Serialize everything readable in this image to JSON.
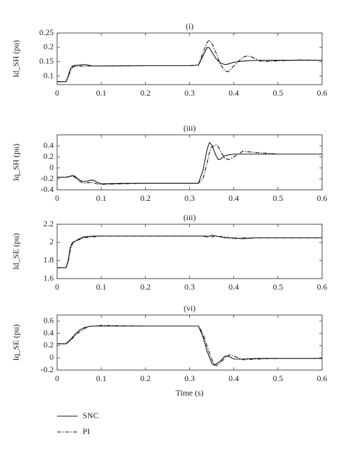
{
  "chart_data": [
    {
      "type": "line",
      "title": "(i)",
      "ylabel": "Id_SH (pu)",
      "x": [
        0,
        0.02,
        0.025,
        0.03,
        0.035,
        0.04,
        0.05,
        0.06,
        0.07,
        0.08,
        0.1,
        0.2,
        0.3,
        0.32,
        0.33,
        0.34,
        0.345,
        0.35,
        0.36,
        0.37,
        0.38,
        0.385,
        0.39,
        0.4,
        0.42,
        0.43,
        0.44,
        0.46,
        0.47,
        0.5,
        0.55,
        0.6
      ],
      "series": [
        {
          "name": "SNC",
          "dash": "solid",
          "values": [
            0.08,
            0.08,
            0.1,
            0.125,
            0.135,
            0.137,
            0.138,
            0.14,
            0.138,
            0.135,
            0.135,
            0.136,
            0.136,
            0.138,
            0.17,
            0.2,
            0.198,
            0.185,
            0.16,
            0.145,
            0.14,
            0.141,
            0.143,
            0.148,
            0.152,
            0.153,
            0.154,
            0.155,
            0.155,
            0.155,
            0.155,
            0.155
          ]
        },
        {
          "name": "PI",
          "dash": "dashdot",
          "values": [
            0.08,
            0.08,
            0.095,
            0.118,
            0.13,
            0.134,
            0.135,
            0.134,
            0.135,
            0.135,
            0.135,
            0.136,
            0.136,
            0.138,
            0.18,
            0.218,
            0.225,
            0.215,
            0.18,
            0.14,
            0.118,
            0.115,
            0.118,
            0.135,
            0.165,
            0.17,
            0.167,
            0.152,
            0.15,
            0.153,
            0.156,
            0.155
          ]
        }
      ],
      "xlim": [
        0,
        0.6
      ],
      "xticks": [
        0,
        0.1,
        0.2,
        0.3,
        0.4,
        0.5,
        0.6
      ],
      "ylim": [
        0.07,
        0.25
      ],
      "yticks": [
        0.1,
        0.15,
        0.2,
        0.25
      ]
    },
    {
      "type": "line",
      "title": "(iii)",
      "ylabel": "Iq_SH (pu)",
      "x": [
        0,
        0.02,
        0.03,
        0.035,
        0.04,
        0.05,
        0.06,
        0.07,
        0.08,
        0.09,
        0.1,
        0.15,
        0.2,
        0.3,
        0.32,
        0.33,
        0.34,
        0.345,
        0.35,
        0.36,
        0.365,
        0.37,
        0.38,
        0.39,
        0.4,
        0.42,
        0.45,
        0.5,
        0.6
      ],
      "series": [
        {
          "name": "SNC",
          "dash": "solid",
          "values": [
            -0.17,
            -0.17,
            -0.15,
            -0.14,
            -0.15,
            -0.22,
            -0.25,
            -0.24,
            -0.22,
            -0.26,
            -0.29,
            -0.28,
            -0.28,
            -0.28,
            -0.28,
            -0.05,
            0.35,
            0.46,
            0.42,
            0.22,
            0.15,
            0.16,
            0.22,
            0.24,
            0.25,
            0.25,
            0.25,
            0.25,
            0.25
          ]
        },
        {
          "name": "PI",
          "dash": "dashdot",
          "values": [
            -0.17,
            -0.17,
            -0.16,
            -0.15,
            -0.17,
            -0.24,
            -0.28,
            -0.27,
            -0.27,
            -0.29,
            -0.3,
            -0.29,
            -0.28,
            -0.28,
            -0.28,
            -0.2,
            0.1,
            0.28,
            0.38,
            0.42,
            0.38,
            0.3,
            0.17,
            0.15,
            0.2,
            0.3,
            0.28,
            0.25,
            0.25
          ]
        }
      ],
      "xlim": [
        0,
        0.6
      ],
      "xticks": [
        0,
        0.1,
        0.2,
        0.3,
        0.4,
        0.5,
        0.6
      ],
      "ylim": [
        -0.4,
        0.6
      ],
      "yticks": [
        -0.4,
        -0.2,
        0,
        0.2,
        0.4
      ]
    },
    {
      "type": "line",
      "title": "(iii)",
      "ylabel": "Id_SE (pu)",
      "x": [
        0,
        0.02,
        0.025,
        0.03,
        0.035,
        0.04,
        0.05,
        0.06,
        0.08,
        0.1,
        0.2,
        0.3,
        0.33,
        0.34,
        0.35,
        0.36,
        0.38,
        0.4,
        0.42,
        0.45,
        0.5,
        0.6
      ],
      "series": [
        {
          "name": "SNC",
          "dash": "solid",
          "values": [
            1.72,
            1.72,
            1.8,
            1.95,
            2.0,
            2.01,
            2.04,
            2.06,
            2.07,
            2.07,
            2.07,
            2.07,
            2.07,
            2.06,
            2.08,
            2.07,
            2.05,
            2.05,
            2.04,
            2.05,
            2.05,
            2.05
          ]
        },
        {
          "name": "PI",
          "dash": "dashdot",
          "values": [
            1.72,
            1.72,
            1.78,
            1.92,
            1.99,
            2.01,
            2.03,
            2.05,
            2.06,
            2.07,
            2.07,
            2.07,
            2.07,
            2.07,
            2.06,
            2.07,
            2.06,
            2.04,
            2.05,
            2.05,
            2.05,
            2.05
          ]
        }
      ],
      "xlim": [
        0,
        0.6
      ],
      "xticks": [
        0,
        0.1,
        0.2,
        0.3,
        0.4,
        0.5,
        0.6
      ],
      "ylim": [
        1.6,
        2.2
      ],
      "yticks": [
        1.6,
        1.8,
        2,
        2.2
      ]
    },
    {
      "type": "line",
      "title": "(vi)",
      "ylabel": "Iq_SE (pu)",
      "x": [
        0,
        0.02,
        0.03,
        0.04,
        0.05,
        0.06,
        0.07,
        0.08,
        0.1,
        0.2,
        0.3,
        0.32,
        0.33,
        0.34,
        0.35,
        0.355,
        0.36,
        0.37,
        0.38,
        0.39,
        0.4,
        0.42,
        0.45,
        0.5,
        0.6
      ],
      "series": [
        {
          "name": "SNC",
          "dash": "solid",
          "values": [
            0.23,
            0.23,
            0.3,
            0.38,
            0.45,
            0.49,
            0.51,
            0.52,
            0.52,
            0.52,
            0.52,
            0.52,
            0.35,
            0.1,
            -0.08,
            -0.12,
            -0.1,
            -0.05,
            0.03,
            0.02,
            -0.02,
            -0.02,
            -0.01,
            -0.01,
            -0.01
          ]
        },
        {
          "name": "PI",
          "dash": "dashdot",
          "values": [
            0.23,
            0.23,
            0.28,
            0.36,
            0.42,
            0.47,
            0.51,
            0.52,
            0.53,
            0.52,
            0.52,
            0.52,
            0.4,
            0.18,
            -0.02,
            -0.1,
            -0.13,
            -0.08,
            0.0,
            0.05,
            0.03,
            -0.03,
            -0.02,
            -0.01,
            -0.01
          ]
        }
      ],
      "xlim": [
        0,
        0.6
      ],
      "xticks": [
        0,
        0.1,
        0.2,
        0.3,
        0.4,
        0.5,
        0.6
      ],
      "ylim": [
        -0.2,
        0.7
      ],
      "yticks": [
        -0.2,
        0,
        0.2,
        0.4,
        0.6
      ],
      "xlabel": "Time (s)"
    }
  ]
}
